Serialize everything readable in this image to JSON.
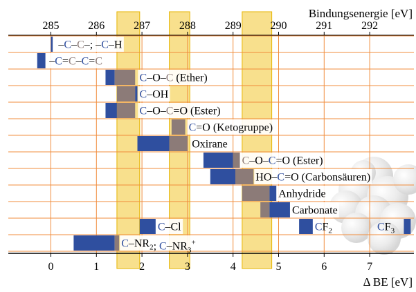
{
  "colors": {
    "grid": "#f08c3c",
    "highlight": "#f5d050",
    "highlight_border": "#e6b400",
    "bar_blue": "#2f4f9f",
    "bar_gray": "#8c7b78",
    "carbon_blue": "#2f4f9f",
    "carbon_gray": "#8c7b78",
    "text": "#000000"
  },
  "chart_data": {
    "type": "bar",
    "orientation": "horizontal-range",
    "top_axis": {
      "label": "Bindungsenergie [eV]",
      "ticks": [
        "285",
        "286",
        "287",
        "288",
        "289",
        "290",
        "291",
        "292"
      ],
      "tick_values": [
        285,
        286,
        287,
        288,
        289,
        290,
        291,
        292
      ]
    },
    "bottom_axis": {
      "label": "Δ BE [eV]",
      "ticks": [
        "0",
        "1",
        "2",
        "3",
        "4",
        "5",
        "6",
        "7"
      ],
      "tick_values": [
        0,
        1,
        2,
        3,
        4,
        5,
        6,
        7
      ],
      "range": [
        -0.8,
        7.9
      ]
    },
    "highlight_bands": [
      [
        1.45,
        1.95
      ],
      [
        2.6,
        3.05
      ],
      [
        4.2,
        4.85
      ]
    ],
    "rows": [
      {
        "label": [
          {
            "t": "–",
            "c": "b"
          },
          {
            "t": "C",
            "c": "blue"
          },
          {
            "t": "–",
            "c": "b"
          },
          {
            "t": "C",
            "c": "gray"
          },
          {
            "t": "–; –",
            "c": "b"
          },
          {
            "t": "C",
            "c": "blue"
          },
          {
            "t": "–H",
            "c": "b"
          }
        ],
        "bars": [
          [
            0.0,
            0.04,
            "blue"
          ]
        ],
        "label_at": 0.12,
        "label_bg": "white"
      },
      {
        "label": [
          {
            "t": "–",
            "c": "b"
          },
          {
            "t": "C",
            "c": "blue"
          },
          {
            "t": "=",
            "c": "b"
          },
          {
            "t": "C",
            "c": "gray"
          },
          {
            "t": "–",
            "c": "b"
          },
          {
            "t": "C",
            "c": "blue"
          },
          {
            "t": "=",
            "c": "b"
          },
          {
            "t": "C",
            "c": "gray"
          }
        ],
        "bars": [
          [
            -0.3,
            -0.12,
            "blue"
          ]
        ],
        "label_at": -0.08,
        "label_bg": "white"
      },
      {
        "label": [
          {
            "t": "C",
            "c": "blue"
          },
          {
            "t": "–O–",
            "c": "b"
          },
          {
            "t": "C",
            "c": "gray"
          },
          {
            "t": " (Ether)",
            "c": "b"
          }
        ],
        "bars": [
          [
            1.2,
            1.4,
            "blue"
          ],
          [
            1.4,
            1.85,
            "gray"
          ]
        ],
        "label_at": 1.9,
        "label_bg": "white"
      },
      {
        "label": [
          {
            "t": "C",
            "c": "blue"
          },
          {
            "t": "–OH",
            "c": "b"
          }
        ],
        "bars": [
          [
            1.45,
            1.85,
            "gray"
          ],
          [
            1.85,
            1.9,
            "blue"
          ]
        ],
        "label_at": 1.9,
        "label_bg": "white"
      },
      {
        "label": [
          {
            "t": "C",
            "c": "blue"
          },
          {
            "t": "–O–",
            "c": "b"
          },
          {
            "t": "C",
            "c": "gray"
          },
          {
            "t": "=O (Ester)",
            "c": "b"
          }
        ],
        "bars": [
          [
            1.2,
            1.45,
            "blue"
          ],
          [
            1.45,
            1.85,
            "gray"
          ]
        ],
        "label_at": 1.9,
        "label_bg": "white"
      },
      {
        "label": [
          {
            "t": "C",
            "c": "blue"
          },
          {
            "t": "=O (Ketogruppe)",
            "c": "b"
          }
        ],
        "bars": [
          [
            2.65,
            2.95,
            "gray"
          ]
        ],
        "label_at": 2.98,
        "label_bg": "white"
      },
      {
        "label": [
          {
            "t": "Oxirane",
            "c": "b"
          }
        ],
        "bars": [
          [
            1.9,
            2.6,
            "blue"
          ],
          [
            2.6,
            3.0,
            "gray"
          ]
        ],
        "label_at": 3.05,
        "label_bg": "white"
      },
      {
        "label": [
          {
            "t": "C",
            "c": "gray"
          },
          {
            "t": "–O–",
            "c": "b"
          },
          {
            "t": "C",
            "c": "blue"
          },
          {
            "t": "=O (Ester)",
            "c": "b"
          }
        ],
        "bars": [
          [
            3.35,
            4.0,
            "blue"
          ],
          [
            4.0,
            4.15,
            "gray"
          ]
        ],
        "label_at": 4.15,
        "label_bg": "white"
      },
      {
        "label": [
          {
            "t": "HO–",
            "c": "b"
          },
          {
            "t": "C",
            "c": "blue"
          },
          {
            "t": "=O (Carbonsäuren)",
            "c": "b"
          }
        ],
        "bars": [
          [
            3.5,
            4.05,
            "blue"
          ],
          [
            4.05,
            4.45,
            "gray"
          ]
        ],
        "label_at": 4.45,
        "label_bg": "white"
      },
      {
        "label": [
          {
            "t": "Anhydride",
            "c": "b"
          }
        ],
        "bars": [
          [
            4.2,
            4.8,
            "gray"
          ],
          [
            4.8,
            4.95,
            "blue"
          ]
        ],
        "label_at": 4.95,
        "label_bg": "white"
      },
      {
        "label": [
          {
            "t": "Carbonate",
            "c": "b"
          }
        ],
        "bars": [
          [
            4.6,
            4.8,
            "gray"
          ],
          [
            4.8,
            5.25,
            "blue"
          ]
        ],
        "label_at": 5.25,
        "label_bg": "white"
      },
      {
        "label": [
          {
            "t": "C",
            "c": "blue"
          },
          {
            "t": "–Cl",
            "c": "b"
          }
        ],
        "bars": [
          [
            1.95,
            2.3,
            "blue"
          ]
        ],
        "label_at": 2.3,
        "label_bg": "white",
        "extra_labels": [
          {
            "segs": [
              {
                "t": "C",
                "c": "blue"
              },
              {
                "t": "F",
                "c": "b"
              },
              {
                "t": "2",
                "c": "b",
                "sub": true
              }
            ],
            "at": 5.75
          },
          {
            "segs": [
              {
                "t": "C",
                "c": "blue"
              },
              {
                "t": "F",
                "c": "b"
              },
              {
                "t": "3",
                "c": "b",
                "sub": true
              }
            ],
            "at": 7.12
          }
        ],
        "extra_bars": [
          [
            5.45,
            5.75,
            "blue"
          ],
          [
            7.75,
            7.9,
            "blue"
          ]
        ]
      },
      {
        "label": [
          {
            "t": "C",
            "c": "blue"
          },
          {
            "t": "–NR",
            "c": "b"
          },
          {
            "t": "2",
            "c": "b",
            "sub": true
          },
          {
            "t": "; ",
            "c": "b"
          },
          {
            "t": "C",
            "c": "blue"
          },
          {
            "t": "–NR",
            "c": "b"
          },
          {
            "t": "3",
            "c": "b",
            "sub": true
          },
          {
            "t": "+",
            "c": "b",
            "sup": true
          }
        ],
        "bars": [
          [
            0.5,
            1.4,
            "blue"
          ],
          [
            1.4,
            1.5,
            "gray"
          ]
        ],
        "label_at": 1.5,
        "label_bg": "white"
      }
    ]
  }
}
